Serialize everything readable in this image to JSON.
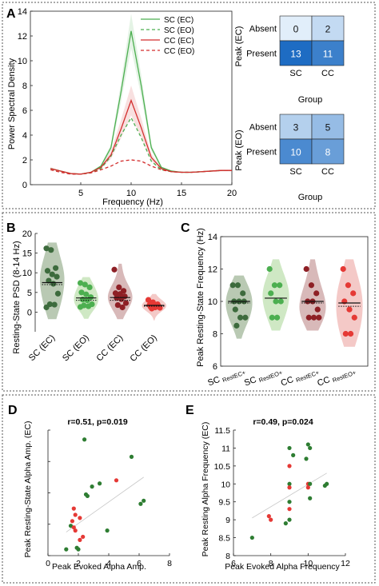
{
  "chart_data": [
    {
      "panel": "A",
      "type": "line",
      "xlabel": "Frequency (Hz)",
      "ylabel": "Power Spectral Density",
      "xlim": [
        0,
        20
      ],
      "ylim": [
        0,
        14
      ],
      "xticks": [
        5,
        10,
        15,
        20
      ],
      "yticks": [
        0,
        2,
        4,
        6,
        8,
        10,
        12,
        14
      ],
      "legend_position": "top-right",
      "x": [
        2,
        3,
        4,
        5,
        6,
        7,
        8,
        9,
        10,
        11,
        12,
        13,
        14,
        15,
        16,
        17,
        18,
        19,
        20
      ],
      "series": [
        {
          "name": "SC (EC)",
          "color": "#4caf50",
          "dash": "solid",
          "values": [
            1.3,
            1.1,
            0.9,
            0.85,
            1.0,
            1.5,
            3.0,
            7.5,
            12.4,
            8.0,
            3.0,
            1.4,
            1.1,
            1.0,
            1.0,
            1.05,
            1.1,
            1.15,
            1.15
          ],
          "band": 1.4
        },
        {
          "name": "SC (EO)",
          "color": "#4caf50",
          "dash": "dashed",
          "values": [
            1.3,
            1.1,
            0.9,
            0.85,
            0.95,
            1.3,
            2.3,
            4.0,
            5.4,
            3.8,
            1.9,
            1.2,
            1.05,
            1.0,
            1.0,
            1.05,
            1.1,
            1.15,
            1.15
          ],
          "band": 0.0
        },
        {
          "name": "CC (EC)",
          "color": "#d32f2f",
          "dash": "solid",
          "values": [
            1.3,
            1.1,
            0.9,
            0.85,
            1.0,
            1.4,
            2.4,
            4.5,
            6.8,
            4.6,
            2.2,
            1.3,
            1.05,
            1.0,
            1.0,
            1.05,
            1.1,
            1.15,
            1.15
          ],
          "band": 1.2
        },
        {
          "name": "CC (EO)",
          "color": "#d32f2f",
          "dash": "dashed",
          "values": [
            1.2,
            1.0,
            0.85,
            0.85,
            0.95,
            1.2,
            1.5,
            1.9,
            2.0,
            1.9,
            1.5,
            1.2,
            1.05,
            1.0,
            1.0,
            1.05,
            1.1,
            1.15,
            1.15
          ],
          "band": 0.0
        }
      ]
    },
    {
      "panel": "A-right-top",
      "type": "heatmap",
      "ylabel": "Peak (EC)",
      "xlabel": "Group",
      "rows": [
        "Absent",
        "Present"
      ],
      "cols": [
        "SC",
        "CC"
      ],
      "values": [
        [
          0,
          2
        ],
        [
          13,
          11
        ]
      ]
    },
    {
      "panel": "A-right-bottom",
      "type": "heatmap",
      "ylabel": "Peak (EO)",
      "xlabel": "Group",
      "rows": [
        "Absent",
        "Present"
      ],
      "cols": [
        "SC",
        "CC"
      ],
      "values": [
        [
          3,
          5
        ],
        [
          10,
          8
        ]
      ]
    },
    {
      "panel": "B",
      "type": "scatter",
      "ylabel": "Resting-State PSD (8-14 Hz)",
      "ylim": [
        -5,
        20
      ],
      "yticks": [
        0,
        5,
        10,
        15,
        20
      ],
      "categories": [
        "SC (EC)",
        "SC (EO)",
        "CC (EC)",
        "CC (EO)"
      ],
      "groups": [
        {
          "name": "SC (EC)",
          "color": "#3d6b3d",
          "violin": "#b9c9b3",
          "mean": 7.5,
          "median": 7.0,
          "points": [
            16.2,
            15.8,
            11.2,
            10.5,
            9.6,
            9.0,
            8.0,
            7.2,
            4.7,
            2.0,
            1.9,
            1.2
          ]
        },
        {
          "name": "SC (EO)",
          "color": "#4caf50",
          "violin": "#cfe8c4",
          "mean": 3.6,
          "median": 3.0,
          "points": [
            7.4,
            7.0,
            6.3,
            5.0,
            4.5,
            3.8,
            3.2,
            3.0,
            2.0,
            1.7,
            1.5,
            1.3
          ]
        },
        {
          "name": "CC (EC)",
          "color": "#8e1f25",
          "violin": "#d8b9b9",
          "mean": 3.7,
          "median": 3.0,
          "points": [
            10.8,
            6.3,
            5.4,
            4.8,
            4.6,
            4.0,
            3.6,
            3.3,
            2.3,
            1.8,
            1.2
          ]
        },
        {
          "name": "CC (EO)",
          "color": "#e53935",
          "violin": "#f4c9c7",
          "mean": 1.7,
          "median": 1.5,
          "points": [
            3.1,
            2.5,
            2.0,
            1.8,
            1.6,
            1.5,
            1.3,
            1.2,
            1.1,
            0.9
          ]
        }
      ]
    },
    {
      "panel": "C",
      "type": "scatter",
      "ylabel": "Peak Resting-State Frequency (Hz)",
      "ylim": [
        6,
        14
      ],
      "yticks": [
        6,
        8,
        10,
        12,
        14
      ],
      "categories": [
        {
          "main": "SC",
          "sub": "RestEC+"
        },
        {
          "main": "SC",
          "sub": "RestEO+"
        },
        {
          "main": "CC",
          "sub": "RestEC+"
        },
        {
          "main": "CC",
          "sub": "RestEO+"
        }
      ],
      "groups": [
        {
          "color": "#3d6b3d",
          "violin": "#b9c9b3",
          "mean": 10.0,
          "median": 9.9,
          "points": [
            11.0,
            11.0,
            10.5,
            10.0,
            10.0,
            10.0,
            9.5,
            9.0,
            9.0,
            8.5
          ]
        },
        {
          "color": "#4caf50",
          "violin": "#cfe8c4",
          "mean": 10.2,
          "median": 10.2,
          "points": [
            12.0,
            11.0,
            11.0,
            10.5,
            10.0,
            10.0,
            9.0,
            9.0
          ]
        },
        {
          "color": "#8e1f25",
          "violin": "#d8b9b9",
          "mean": 10.0,
          "median": 9.9,
          "points": [
            12.0,
            11.0,
            10.5,
            10.0,
            10.0,
            9.5,
            9.0,
            9.0,
            9.0
          ]
        },
        {
          "color": "#e53935",
          "violin": "#f4c9c7",
          "mean": 9.9,
          "median": 9.7,
          "points": [
            12.0,
            11.0,
            10.5,
            10.0,
            9.5,
            9.0,
            8.0,
            8.0
          ]
        }
      ]
    },
    {
      "panel": "D",
      "type": "scatter",
      "title": "r=0.51, p=0.019",
      "xlabel": "Peak Evoked Alpha Amp.",
      "ylabel": "Peak Resting-State Alpha Amp. (EC)",
      "xlim": [
        0,
        8
      ],
      "ylim": [
        0,
        40
      ],
      "xticks": [
        0,
        2,
        4,
        6,
        8
      ],
      "points": [
        {
          "x": 2.4,
          "y": 37.0,
          "c": "#2e7d32"
        },
        {
          "x": 5.5,
          "y": 31.5,
          "c": "#2e7d32"
        },
        {
          "x": 2.9,
          "y": 22.0,
          "c": "#2e7d32"
        },
        {
          "x": 2.5,
          "y": 19.5,
          "c": "#2e7d32"
        },
        {
          "x": 2.6,
          "y": 19.0,
          "c": "#2e7d32"
        },
        {
          "x": 3.4,
          "y": 23.0,
          "c": "#2e7d32"
        },
        {
          "x": 4.5,
          "y": 24.0,
          "c": "#e53935"
        },
        {
          "x": 6.3,
          "y": 17.5,
          "c": "#2e7d32"
        },
        {
          "x": 6.1,
          "y": 16.5,
          "c": "#2e7d32"
        },
        {
          "x": 1.7,
          "y": 15.0,
          "c": "#e53935"
        },
        {
          "x": 1.8,
          "y": 13.0,
          "c": "#e53935"
        },
        {
          "x": 2.1,
          "y": 12.0,
          "c": "#e53935"
        },
        {
          "x": 1.6,
          "y": 11.0,
          "c": "#e53935"
        },
        {
          "x": 1.5,
          "y": 9.5,
          "c": "#2e7d32"
        },
        {
          "x": 1.7,
          "y": 9.0,
          "c": "#e53935"
        },
        {
          "x": 1.8,
          "y": 8.0,
          "c": "#e53935"
        },
        {
          "x": 3.9,
          "y": 8.0,
          "c": "#2e7d32"
        },
        {
          "x": 2.3,
          "y": 6.0,
          "c": "#e53935"
        },
        {
          "x": 2.1,
          "y": 5.0,
          "c": "#e53935"
        },
        {
          "x": 1.2,
          "y": 2.0,
          "c": "#2e7d32"
        },
        {
          "x": 1.9,
          "y": 2.5,
          "c": "#2e7d32"
        },
        {
          "x": 2.0,
          "y": 2.0,
          "c": "#2e7d32"
        }
      ],
      "fit": [
        [
          1.2,
          7.5
        ],
        [
          6.3,
          25.0
        ]
      ]
    },
    {
      "panel": "E",
      "type": "scatter",
      "title": "r=0.49, p=0.024",
      "xlabel": "Peak Evoked Alpha Frequency",
      "ylabel": "Peak Resting Alpha Frequency (EC)",
      "xlim": [
        6,
        12
      ],
      "ylim": [
        8,
        11.5
      ],
      "xticks": [
        6,
        8,
        10,
        12
      ],
      "yticks": [
        8,
        8.5,
        9,
        9.5,
        10,
        10.5,
        11,
        11.5
      ],
      "points": [
        {
          "x": 9.0,
          "y": 11.0,
          "c": "#2e7d32"
        },
        {
          "x": 10.0,
          "y": 11.1,
          "c": "#2e7d32"
        },
        {
          "x": 9.2,
          "y": 10.8,
          "c": "#2e7d32"
        },
        {
          "x": 10.1,
          "y": 11.0,
          "c": "#2e7d32"
        },
        {
          "x": 9.0,
          "y": 10.5,
          "c": "#e53935"
        },
        {
          "x": 9.9,
          "y": 10.7,
          "c": "#2e7d32"
        },
        {
          "x": 9.0,
          "y": 10.0,
          "c": "#2e7d32"
        },
        {
          "x": 9.0,
          "y": 9.9,
          "c": "#e53935"
        },
        {
          "x": 10.0,
          "y": 10.0,
          "c": "#e53935"
        },
        {
          "x": 10.0,
          "y": 9.9,
          "c": "#e53935"
        },
        {
          "x": 10.1,
          "y": 10.0,
          "c": "#2e7d32"
        },
        {
          "x": 11.0,
          "y": 10.0,
          "c": "#2e7d32"
        },
        {
          "x": 10.9,
          "y": 9.95,
          "c": "#2e7d32"
        },
        {
          "x": 10.1,
          "y": 9.6,
          "c": "#2e7d32"
        },
        {
          "x": 9.0,
          "y": 9.5,
          "c": "#2e7d32"
        },
        {
          "x": 9.0,
          "y": 9.3,
          "c": "#e53935"
        },
        {
          "x": 7.9,
          "y": 9.1,
          "c": "#e53935"
        },
        {
          "x": 8.0,
          "y": 9.0,
          "c": "#e53935"
        },
        {
          "x": 9.0,
          "y": 9.0,
          "c": "#2e7d32"
        },
        {
          "x": 8.8,
          "y": 8.9,
          "c": "#2e7d32"
        },
        {
          "x": 7.0,
          "y": 8.5,
          "c": "#2e7d32"
        }
      ],
      "fit": [
        [
          7.0,
          9.05
        ],
        [
          11.0,
          10.3
        ]
      ]
    }
  ],
  "panel_labels": {
    "A": "A",
    "B": "B",
    "C": "C",
    "D": "D",
    "E": "E"
  }
}
